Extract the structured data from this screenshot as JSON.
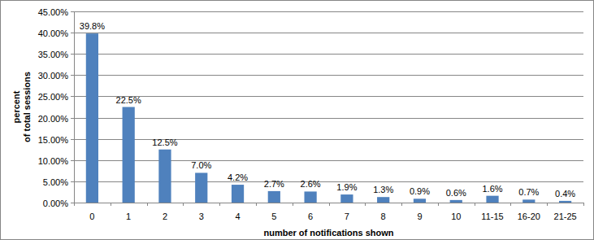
{
  "chart_data": {
    "type": "bar",
    "ylabel": [
      "percent",
      "of total sessions"
    ],
    "xlabel": "number of notifications shown",
    "categories": [
      "0",
      "1",
      "2",
      "3",
      "4",
      "5",
      "6",
      "7",
      "8",
      "9",
      "10",
      "11-15",
      "16-20",
      "21-25"
    ],
    "values": [
      39.8,
      22.5,
      12.5,
      7.0,
      4.2,
      2.7,
      2.6,
      1.9,
      1.3,
      0.9,
      0.6,
      1.6,
      0.7,
      0.4
    ],
    "value_labels": [
      "39.8%",
      "22.5%",
      "12.5%",
      "7.0%",
      "4.2%",
      "2.7%",
      "2.6%",
      "1.9%",
      "1.3%",
      "0.9%",
      "0.6%",
      "1.6%",
      "0.7%",
      "0.4%"
    ],
    "data_labels": true,
    "color": "#4f81bd",
    "ylim": [
      0,
      45
    ],
    "yticks": [
      {
        "value": 0,
        "label": "0.00%"
      },
      {
        "value": 5,
        "label": "5.00%"
      },
      {
        "value": 10,
        "label": "10.00%"
      },
      {
        "value": 15,
        "label": "15.00%"
      },
      {
        "value": 20,
        "label": "20.00%"
      },
      {
        "value": 25,
        "label": "25.00%"
      },
      {
        "value": 30,
        "label": "30.00%"
      },
      {
        "value": 35,
        "label": "35.00%"
      },
      {
        "value": 40,
        "label": "40.00%"
      },
      {
        "value": 45,
        "label": "45.00%"
      }
    ],
    "grid": true
  }
}
